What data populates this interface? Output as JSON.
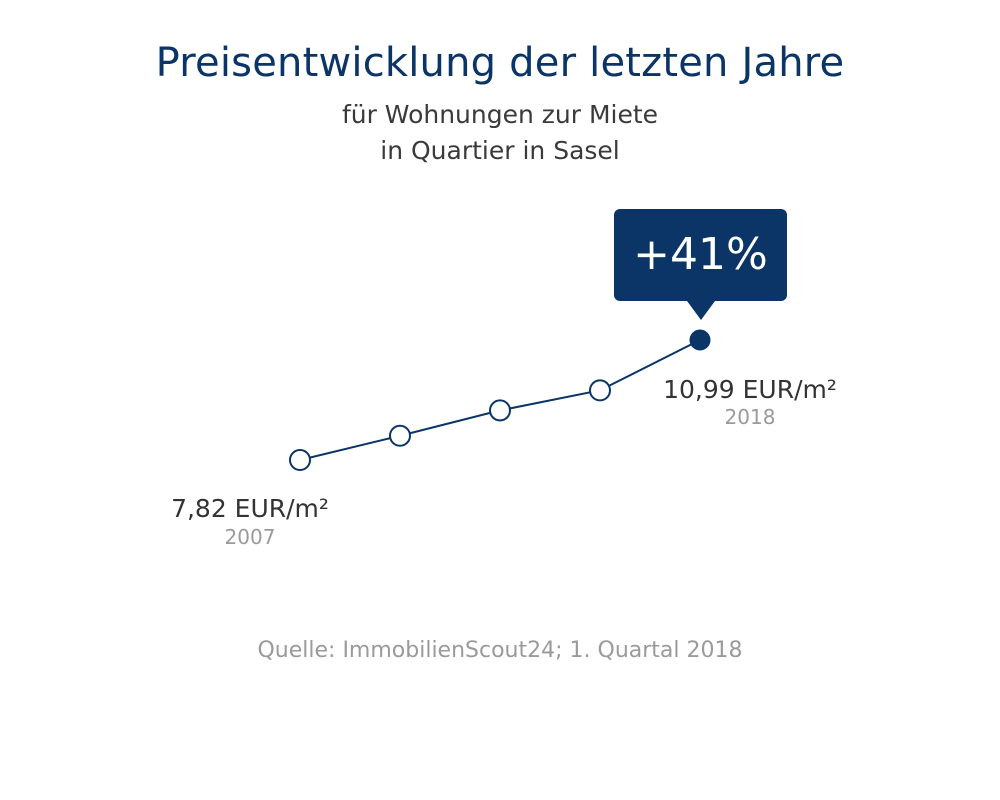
{
  "header": {
    "title": "Preisentwicklung der letzten Jahre",
    "subtitle_line1": "für Wohnungen zur Miete",
    "subtitle_line2": "in Quartier in Sasel"
  },
  "badge": {
    "label": "+41%"
  },
  "labels": {
    "start_value": "7,82 EUR/m²",
    "start_year": "2007",
    "end_value": "10,99 EUR/m²",
    "end_year": "2018"
  },
  "footer": {
    "source": "Quelle: ImmobilienScout24; 1. Quartal 2018"
  },
  "colors": {
    "primary": "#0b3566",
    "muted_text": "#9a9a9a",
    "body_text": "#333333"
  },
  "chart_data": {
    "type": "line",
    "title": "Preisentwicklung der letzten Jahre",
    "subtitle": "für Wohnungen zur Miete in Quartier in Sasel",
    "unit": "EUR/m²",
    "x": [
      "2007",
      "",
      "",
      "",
      "2018"
    ],
    "values": [
      7.82,
      8.46,
      9.13,
      9.66,
      10.99
    ],
    "highlight_index": 4,
    "change_label": "+41%",
    "grid": false,
    "legend": "none"
  }
}
